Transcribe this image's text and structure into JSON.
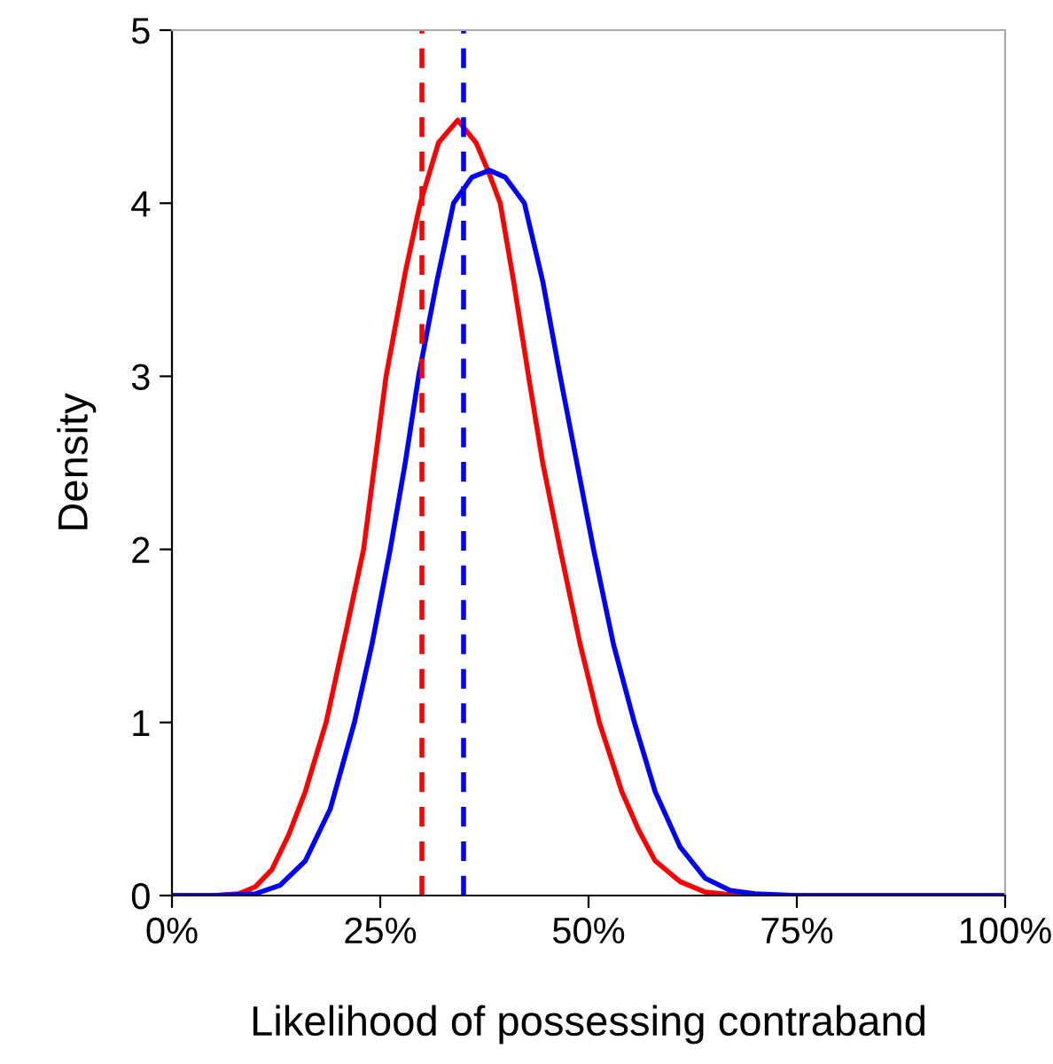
{
  "chart_data": {
    "type": "line",
    "xlabel": "Likelihood of possessing contraband",
    "ylabel": "Density",
    "xlim": [
      0,
      1
    ],
    "ylim": [
      0,
      5
    ],
    "xticks": [
      {
        "value": 0,
        "label": "0%"
      },
      {
        "value": 0.25,
        "label": "25%"
      },
      {
        "value": 0.5,
        "label": "50%"
      },
      {
        "value": 0.75,
        "label": "75%"
      },
      {
        "value": 1,
        "label": "100%"
      }
    ],
    "yticks": [
      0,
      1,
      2,
      3,
      4,
      5
    ],
    "grid": false,
    "legend": false,
    "line_style": "solid",
    "marker": "none",
    "series": [
      {
        "color": "#ff0000",
        "x": [
          0,
          0.05,
          0.08,
          0.1,
          0.12,
          0.14,
          0.16,
          0.185,
          0.21,
          0.23,
          0.257,
          0.28,
          0.298,
          0.32,
          0.343,
          0.365,
          0.38,
          0.394,
          0.41,
          0.428,
          0.445,
          0.466,
          0.49,
          0.513,
          0.54,
          0.56,
          0.58,
          0.61,
          0.64,
          0.68,
          0.75,
          1
        ],
        "values": [
          0,
          0,
          0.01,
          0.05,
          0.15,
          0.35,
          0.6,
          1.0,
          1.55,
          2.0,
          3.0,
          3.6,
          4.0,
          4.35,
          4.48,
          4.35,
          4.18,
          4.0,
          3.55,
          3.0,
          2.5,
          2.0,
          1.45,
          1.0,
          0.6,
          0.38,
          0.2,
          0.08,
          0.02,
          0,
          0,
          0
        ]
      },
      {
        "color": "#0000ff",
        "x": [
          0,
          0.05,
          0.1,
          0.13,
          0.16,
          0.19,
          0.219,
          0.24,
          0.262,
          0.28,
          0.296,
          0.318,
          0.338,
          0.36,
          0.381,
          0.4,
          0.423,
          0.445,
          0.466,
          0.486,
          0.506,
          0.53,
          0.555,
          0.58,
          0.61,
          0.64,
          0.67,
          0.7,
          0.75,
          1
        ],
        "values": [
          0,
          0,
          0.01,
          0.06,
          0.2,
          0.5,
          1.0,
          1.45,
          2.0,
          2.5,
          3.0,
          3.55,
          4.0,
          4.15,
          4.19,
          4.15,
          4.0,
          3.55,
          3.0,
          2.5,
          2.0,
          1.45,
          1.0,
          0.6,
          0.28,
          0.1,
          0.03,
          0.01,
          0,
          0
        ]
      }
    ],
    "ref_lines": [
      {
        "axis": "x",
        "value": 0.3,
        "color": "#ff0000",
        "line_style": "dashed"
      },
      {
        "axis": "x",
        "value": 0.35,
        "color": "#0000ff",
        "line_style": "dashed"
      }
    ]
  }
}
